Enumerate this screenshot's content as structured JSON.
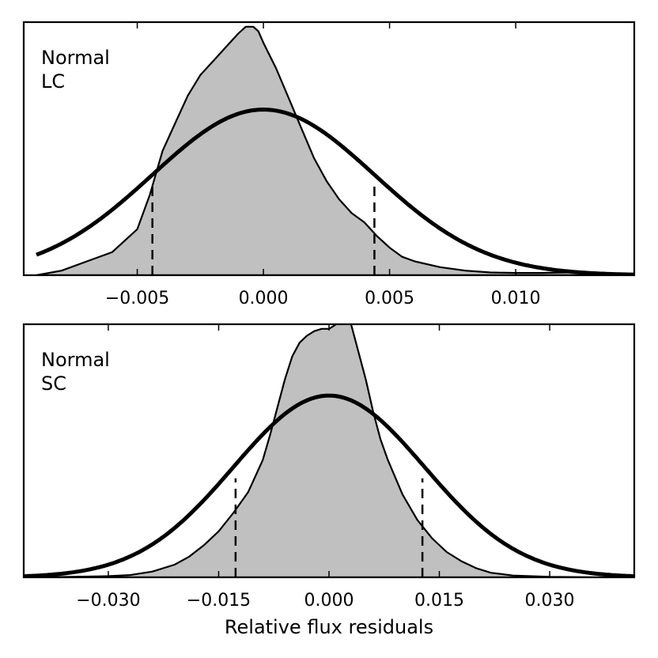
{
  "figure": {
    "xlabel": "Relative flux residuals",
    "colors": {
      "fill": "#c0c0c0",
      "line": "#000000",
      "background": "#ffffff"
    }
  },
  "chart_data": [
    {
      "type": "area",
      "title": "",
      "annotation": [
        "Normal",
        "LC"
      ],
      "xlabel": "",
      "ylabel": "",
      "xlim": [
        -0.0095,
        0.0147
      ],
      "ylim": [
        0,
        1.1
      ],
      "xticks": [
        -0.005,
        0.0,
        0.005,
        0.01
      ],
      "xtick_labels": [
        "−0.005",
        "0.000",
        "0.005",
        "0.010"
      ],
      "grid": false,
      "series": [
        {
          "name": "residual distribution",
          "kind": "filled-density",
          "x": [
            -0.009,
            -0.008,
            -0.007,
            -0.006,
            -0.005,
            -0.0045,
            -0.004,
            -0.0035,
            -0.003,
            -0.0025,
            -0.002,
            -0.0015,
            -0.001,
            -0.0007,
            -0.0004,
            -0.0002,
            0.0,
            0.0005,
            0.001,
            0.0015,
            0.002,
            0.0025,
            0.003,
            0.0035,
            0.004,
            0.0045,
            0.005,
            0.0055,
            0.006,
            0.007,
            0.008,
            0.009,
            0.01,
            0.011,
            0.012,
            0.0125,
            0.013,
            0.014,
            0.0147
          ],
          "y": [
            0.0,
            0.02,
            0.06,
            0.1,
            0.2,
            0.35,
            0.54,
            0.66,
            0.78,
            0.87,
            0.93,
            0.99,
            1.05,
            1.08,
            1.08,
            1.06,
            1.01,
            0.9,
            0.77,
            0.64,
            0.51,
            0.41,
            0.33,
            0.27,
            0.23,
            0.17,
            0.12,
            0.08,
            0.06,
            0.035,
            0.02,
            0.012,
            0.01,
            0.01,
            0.012,
            0.016,
            0.012,
            0.006,
            0.002
          ]
        },
        {
          "name": "normal fit",
          "kind": "gaussian",
          "mean": 0.0,
          "sigma": 0.0044,
          "peak": 0.72,
          "x_range": [
            -0.009,
            0.0147
          ]
        }
      ],
      "vlines": [
        -0.0044,
        0.0044
      ],
      "vline_extent": [
        0.0,
        0.39
      ]
    },
    {
      "type": "area",
      "title": "",
      "annotation": [
        "Normal",
        "SC"
      ],
      "xlabel": "Relative flux residuals",
      "ylabel": "",
      "xlim": [
        -0.0415,
        0.0415
      ],
      "ylim": [
        0,
        1.1
      ],
      "xticks": [
        -0.03,
        -0.015,
        0.0,
        0.015,
        0.03
      ],
      "xtick_labels": [
        "−0.030",
        "−0.015",
        "0.000",
        "0.015",
        "0.030"
      ],
      "grid": false,
      "series": [
        {
          "name": "residual distribution",
          "kind": "filled-density",
          "x": [
            -0.0415,
            -0.035,
            -0.03,
            -0.027,
            -0.024,
            -0.021,
            -0.019,
            -0.017,
            -0.015,
            -0.013,
            -0.011,
            -0.009,
            -0.008,
            -0.007,
            -0.006,
            -0.005,
            -0.004,
            -0.003,
            -0.002,
            -0.001,
            0.0,
            0.001,
            0.002,
            0.0025,
            0.003,
            0.004,
            0.005,
            0.006,
            0.007,
            0.008,
            0.01,
            0.012,
            0.014,
            0.016,
            0.018,
            0.02,
            0.022,
            0.025,
            0.03,
            0.035,
            0.0415
          ],
          "y": [
            0.0,
            0.002,
            0.005,
            0.01,
            0.025,
            0.055,
            0.09,
            0.14,
            0.2,
            0.28,
            0.37,
            0.51,
            0.62,
            0.74,
            0.86,
            0.96,
            1.02,
            1.05,
            1.07,
            1.08,
            1.08,
            1.1,
            1.12,
            1.12,
            1.1,
            0.98,
            0.86,
            0.72,
            0.6,
            0.51,
            0.36,
            0.25,
            0.17,
            0.11,
            0.07,
            0.04,
            0.02,
            0.008,
            0.002,
            0.0005,
            0.0
          ]
        },
        {
          "name": "normal fit",
          "kind": "gaussian",
          "mean": 0.0,
          "sigma": 0.013,
          "peak": 0.79,
          "x_range": [
            -0.0415,
            0.0415
          ]
        }
      ],
      "vlines": [
        -0.0127,
        0.0127
      ],
      "vline_extent": [
        0.0,
        0.43
      ]
    }
  ]
}
